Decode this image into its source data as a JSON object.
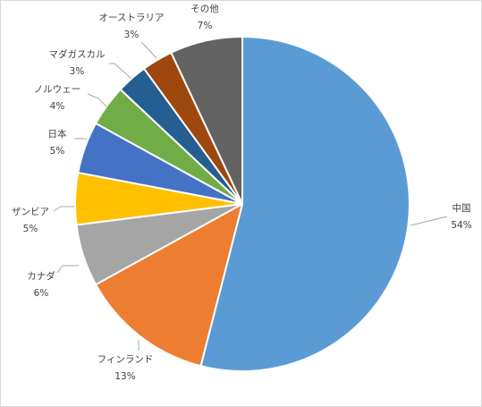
{
  "chart_data": {
    "type": "pie",
    "title": "",
    "start_angle_deg": 0,
    "direction": "clockwise",
    "legend": "none",
    "slices": [
      {
        "label": "中国",
        "value": 54,
        "display": "54%",
        "color": "#5b9bd5"
      },
      {
        "label": "フィンランド",
        "value": 13,
        "display": "13%",
        "color": "#ed7d31"
      },
      {
        "label": "カナダ",
        "value": 6,
        "display": "6%",
        "color": "#a5a5a5"
      },
      {
        "label": "ザンビア",
        "value": 5,
        "display": "5%",
        "color": "#ffc000"
      },
      {
        "label": "日本",
        "value": 5,
        "display": "5%",
        "color": "#4472c4"
      },
      {
        "label": "ノルウェー",
        "value": 4,
        "display": "4%",
        "color": "#70ad47"
      },
      {
        "label": "マダガスカル",
        "value": 3,
        "display": "3%",
        "color": "#255e91"
      },
      {
        "label": "オーストラリア",
        "value": 3,
        "display": "3%",
        "color": "#9e480e"
      },
      {
        "label": "その他",
        "value": 7,
        "display": "7%",
        "color": "#636363"
      }
    ]
  }
}
